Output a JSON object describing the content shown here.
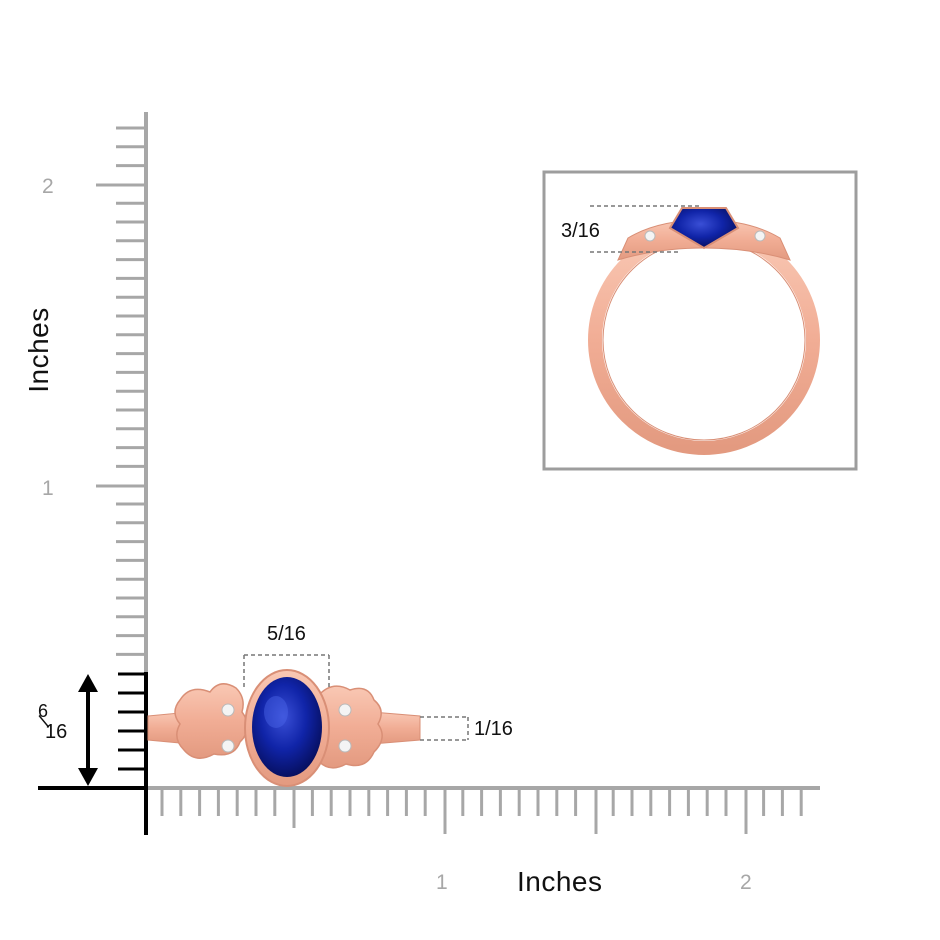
{
  "ruler": {
    "y_axis_title": "Inches",
    "x_axis_title": "Inches",
    "y_ticks": [
      "1",
      "2"
    ],
    "x_ticks": [
      "1",
      "2"
    ]
  },
  "dimensions": {
    "gem_width": "5/16",
    "band_width": "1/16",
    "side_height": "3/16",
    "total_height_numerator": "6",
    "total_height_denominator": "16"
  },
  "colors": {
    "ruler_gray": "#a7a7a7",
    "rose_gold": "#f2b19a",
    "rose_gold_dark": "#d98f76",
    "sapphire": "#0d1a9a",
    "inset_frame": "#9d9d9d"
  }
}
